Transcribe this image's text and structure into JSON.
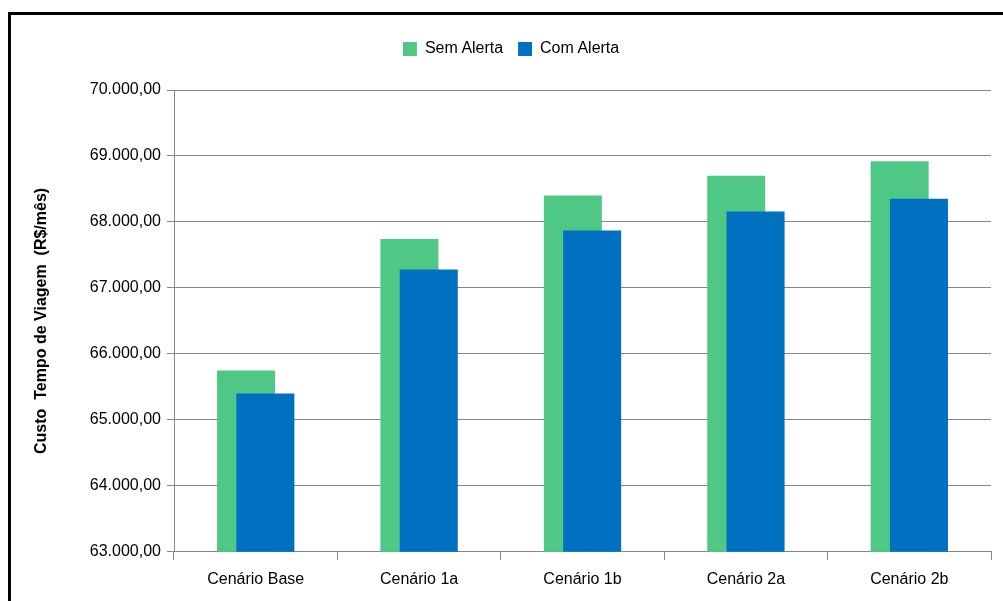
{
  "chart_data": {
    "type": "bar",
    "categories": [
      "Cenário Base",
      "Cenário 1a",
      "Cenário 1b",
      "Cenário 2a",
      "Cenário 2b"
    ],
    "series": [
      {
        "name": "Sem Alerta",
        "color": "#4ec884",
        "values": [
          65750,
          67740,
          68400,
          68700,
          68920
        ]
      },
      {
        "name": "Com Alerta",
        "color": "#0070c0",
        "values": [
          65400,
          67280,
          67870,
          68160,
          68350
        ]
      }
    ],
    "ylabel": "Custo  Tempo de Viagem  (R$/mês)",
    "ylim": [
      63000,
      70000
    ],
    "yticks": [
      {
        "value": 63000,
        "label": "63.000,00"
      },
      {
        "value": 64000,
        "label": "64.000,00"
      },
      {
        "value": 65000,
        "label": "65.000,00"
      },
      {
        "value": 66000,
        "label": "66.000,00"
      },
      {
        "value": 67000,
        "label": "67.000,00"
      },
      {
        "value": 68000,
        "label": "68.000,00"
      },
      {
        "value": 69000,
        "label": "69.000,00"
      },
      {
        "value": 70000,
        "label": "70.000,00"
      }
    ],
    "grid": "y",
    "legend": "top"
  }
}
